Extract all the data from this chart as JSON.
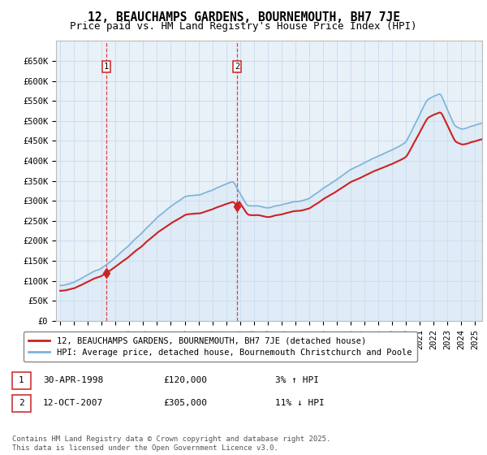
{
  "title": "12, BEAUCHAMPS GARDENS, BOURNEMOUTH, BH7 7JE",
  "subtitle": "Price paid vs. HM Land Registry's House Price Index (HPI)",
  "ylabel_ticks": [
    "£0",
    "£50K",
    "£100K",
    "£150K",
    "£200K",
    "£250K",
    "£300K",
    "£350K",
    "£400K",
    "£450K",
    "£500K",
    "£550K",
    "£600K",
    "£650K"
  ],
  "ytick_vals": [
    0,
    50000,
    100000,
    150000,
    200000,
    250000,
    300000,
    350000,
    400000,
    450000,
    500000,
    550000,
    600000,
    650000
  ],
  "ylim": [
    0,
    700000
  ],
  "xlim_start": 1994.7,
  "xlim_end": 2025.5,
  "hpi_color": "#7ab4d8",
  "hpi_fill_color": "#d0e4f5",
  "price_color": "#cc2222",
  "dashed_color": "#dd4444",
  "grid_color": "#ccddee",
  "bg_color": "#e8f0f8",
  "purchase_1_x": 1998.33,
  "purchase_1_y": 120000,
  "purchase_2_x": 2007.79,
  "purchase_2_y": 305000,
  "legend_line1": "12, BEAUCHAMPS GARDENS, BOURNEMOUTH, BH7 7JE (detached house)",
  "legend_line2": "HPI: Average price, detached house, Bournemouth Christchurch and Poole",
  "footer": "Contains HM Land Registry data © Crown copyright and database right 2025.\nThis data is licensed under the Open Government Licence v3.0.",
  "title_fontsize": 10.5,
  "subtitle_fontsize": 9,
  "tick_fontsize": 7.5,
  "legend_fontsize": 7.5,
  "annotation_fontsize": 8,
  "footer_fontsize": 6.5
}
